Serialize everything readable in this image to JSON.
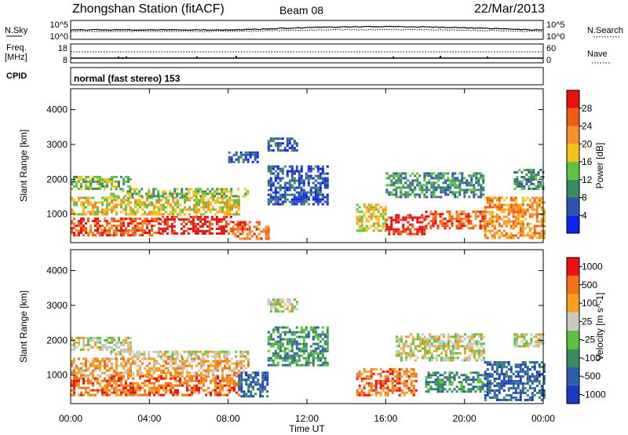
{
  "header": {
    "station": "Zhongshan Station (fitACF)",
    "beam": "Beam 08",
    "date": "22/Mar/2013"
  },
  "noise_panel": {
    "left_label": "N.Sky",
    "right_label": "N.Search",
    "left_ticks": [
      "10^5",
      "10^0"
    ],
    "right_ticks": [
      "10^5",
      "10^0"
    ]
  },
  "freq_panel": {
    "left_label_1": "Freq.",
    "left_label_2": "[MHz]",
    "right_label": "Nave",
    "left_ticks": [
      "18",
      "8"
    ],
    "right_ticks": [
      "60",
      "0"
    ]
  },
  "cpid_panel": {
    "label": "CPID",
    "text": "normal (fast stereo) 153"
  },
  "x_axis": {
    "label": "Time UT",
    "ticks": [
      "00:00",
      "04:00",
      "08:00",
      "12:00",
      "16:00",
      "20:00",
      "00:00"
    ]
  },
  "chart_data": [
    {
      "type": "heatmap",
      "quantity": "Power",
      "ylabel": "Slant Range [km]",
      "colorbar_label": "Power [dB]",
      "y_ticks": [
        1000,
        2000,
        3000,
        4000
      ],
      "ylim": [
        180,
        4600
      ],
      "xlim_hours": [
        0,
        24
      ],
      "colorbar_ticks": [
        "4",
        "8",
        "12",
        "16",
        "20",
        "24",
        "28"
      ],
      "colorbar_colors": [
        "#0b24ee",
        "#2f55b0",
        "#3c8a62",
        "#5fc246",
        "#f2c21a",
        "#f6902a",
        "#f05a12",
        "#e81010"
      ],
      "scatter_regions": [
        {
          "t": [
            0.0,
            4.5
          ],
          "r": [
            400,
            900
          ],
          "level": 6
        },
        {
          "t": [
            4.5,
            8.2
          ],
          "r": [
            450,
            950
          ],
          "level": 7
        },
        {
          "t": [
            8.2,
            10.0
          ],
          "r": [
            300,
            800
          ],
          "level": 6
        },
        {
          "t": [
            0.0,
            8.5
          ],
          "r": [
            1000,
            1500
          ],
          "level": 4
        },
        {
          "t": [
            0.0,
            3.0
          ],
          "r": [
            1700,
            2100
          ],
          "level": 3
        },
        {
          "t": [
            2.0,
            9.0
          ],
          "r": [
            1500,
            1750
          ],
          "level": 3
        },
        {
          "t": [
            10.0,
            13.0
          ],
          "r": [
            1300,
            2400
          ],
          "level": 1
        },
        {
          "t": [
            10.0,
            11.5
          ],
          "r": [
            2800,
            3200
          ],
          "level": 1
        },
        {
          "t": [
            8.0,
            9.5
          ],
          "r": [
            2500,
            2800
          ],
          "level": 1
        },
        {
          "t": [
            14.5,
            16.0
          ],
          "r": [
            500,
            1300
          ],
          "level": 4
        },
        {
          "t": [
            16.0,
            18.0
          ],
          "r": [
            450,
            1000
          ],
          "level": 7
        },
        {
          "t": [
            18.0,
            21.0
          ],
          "r": [
            600,
            1100
          ],
          "level": 6
        },
        {
          "t": [
            16.0,
            21.0
          ],
          "r": [
            1500,
            2200
          ],
          "level": 2
        },
        {
          "t": [
            21.0,
            24.0
          ],
          "r": [
            300,
            1500
          ],
          "level": 5
        },
        {
          "t": [
            22.5,
            24.0
          ],
          "r": [
            1700,
            2300
          ],
          "level": 2
        }
      ]
    },
    {
      "type": "heatmap",
      "quantity": "Velocity",
      "ylabel": "Slant Range [km]",
      "colorbar_label": "Velocity [m s^-1]",
      "y_ticks": [
        1000,
        2000,
        3000,
        4000
      ],
      "ylim": [
        180,
        4600
      ],
      "xlim_hours": [
        0,
        24
      ],
      "colorbar_ticks": [
        "1000",
        "500",
        "100",
        "25",
        "-25",
        "-100",
        "-500",
        "-1000"
      ],
      "colorbar_colors": [
        "#1a3ac4",
        "#2d5fa8",
        "#3d8a5e",
        "#58c23c",
        "#c8c8c0",
        "#f6a020",
        "#f27218",
        "#ee1010"
      ],
      "scatter_regions": [
        {
          "t": [
            0.0,
            8.5
          ],
          "r": [
            400,
            1000
          ],
          "level": 6
        },
        {
          "t": [
            0.0,
            9.0
          ],
          "r": [
            1000,
            1500
          ],
          "level": 5
        },
        {
          "t": [
            0.0,
            3.0
          ],
          "r": [
            1700,
            2100
          ],
          "level": 4
        },
        {
          "t": [
            2.0,
            9.0
          ],
          "r": [
            1500,
            1700
          ],
          "level": 4
        },
        {
          "t": [
            8.5,
            10.0
          ],
          "r": [
            400,
            1100
          ],
          "level": 1
        },
        {
          "t": [
            10.0,
            13.0
          ],
          "r": [
            1300,
            2400
          ],
          "level": 2
        },
        {
          "t": [
            10.0,
            11.5
          ],
          "r": [
            2800,
            3200
          ],
          "level": 4
        },
        {
          "t": [
            14.5,
            17.5
          ],
          "r": [
            450,
            1200
          ],
          "level": 6
        },
        {
          "t": [
            16.5,
            21.0
          ],
          "r": [
            1400,
            2200
          ],
          "level": 4
        },
        {
          "t": [
            18.0,
            21.0
          ],
          "r": [
            500,
            1100
          ],
          "level": 2
        },
        {
          "t": [
            21.0,
            24.0
          ],
          "r": [
            300,
            1400
          ],
          "level": 1
        },
        {
          "t": [
            22.5,
            24.0
          ],
          "r": [
            1800,
            2200
          ],
          "level": 4
        }
      ]
    }
  ]
}
